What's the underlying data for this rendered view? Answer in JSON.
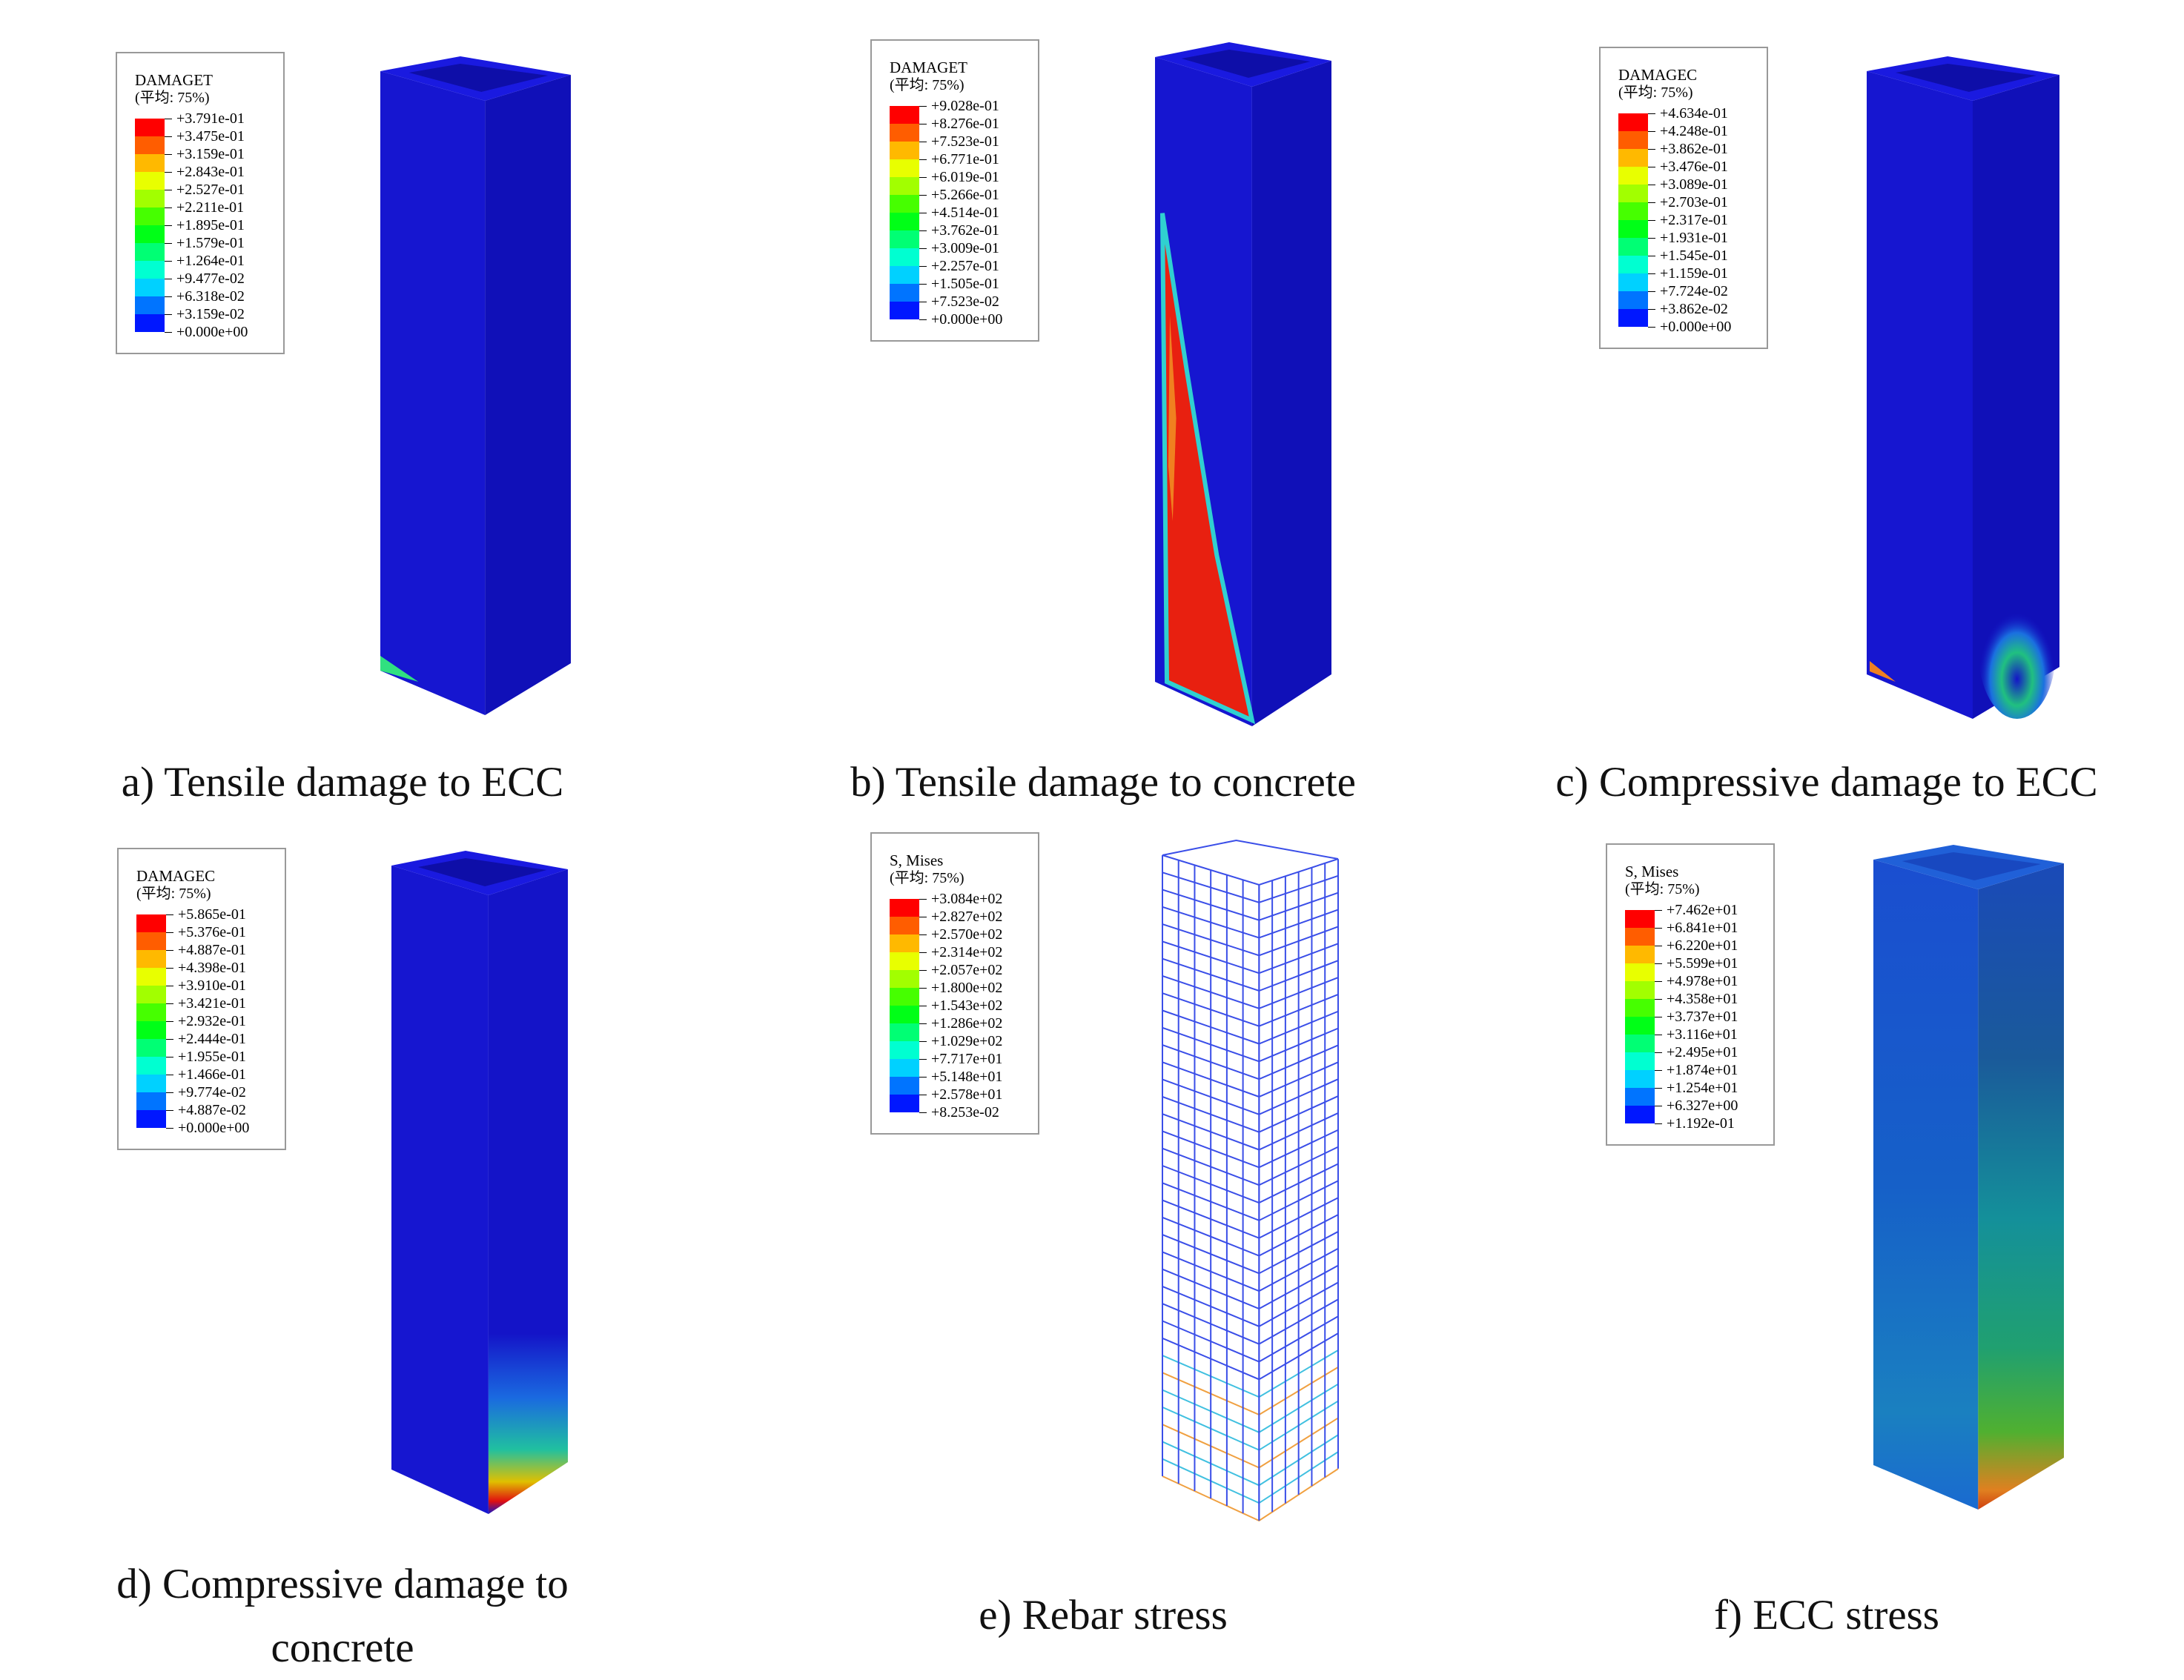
{
  "panels": [
    {
      "legend": {
        "title": "DAMAGET",
        "subtitle": "(平均: 75%)",
        "labels": [
          "+3.791e-01",
          "+3.475e-01",
          "+3.159e-01",
          "+2.843e-01",
          "+2.527e-01",
          "+2.211e-01",
          "+1.895e-01",
          "+1.579e-01",
          "+1.264e-01",
          "+9.477e-02",
          "+6.318e-02",
          "+3.159e-02",
          "+0.000e+00"
        ]
      },
      "caption": "a) Tensile damage to ECC"
    },
    {
      "legend": {
        "title": "DAMAGET",
        "subtitle": "(平均: 75%)",
        "labels": [
          "+9.028e-01",
          "+8.276e-01",
          "+7.523e-01",
          "+6.771e-01",
          "+6.019e-01",
          "+5.266e-01",
          "+4.514e-01",
          "+3.762e-01",
          "+3.009e-01",
          "+2.257e-01",
          "+1.505e-01",
          "+7.523e-02",
          "+0.000e+00"
        ]
      },
      "caption": "b) Tensile damage to concrete"
    },
    {
      "legend": {
        "title": "DAMAGEC",
        "subtitle": "(平均: 75%)",
        "labels": [
          "+4.634e-01",
          "+4.248e-01",
          "+3.862e-01",
          "+3.476e-01",
          "+3.089e-01",
          "+2.703e-01",
          "+2.317e-01",
          "+1.931e-01",
          "+1.545e-01",
          "+1.159e-01",
          "+7.724e-02",
          "+3.862e-02",
          "+0.000e+00"
        ]
      },
      "caption": "c) Compressive damage to ECC"
    },
    {
      "legend": {
        "title": "DAMAGEC",
        "subtitle": "(平均: 75%)",
        "labels": [
          "+5.865e-01",
          "+5.376e-01",
          "+4.887e-01",
          "+4.398e-01",
          "+3.910e-01",
          "+3.421e-01",
          "+2.932e-01",
          "+2.444e-01",
          "+1.955e-01",
          "+1.466e-01",
          "+9.774e-02",
          "+4.887e-02",
          "+0.000e+00"
        ]
      },
      "caption": "d) Compressive damage to concrete"
    },
    {
      "legend": {
        "title": "S, Mises",
        "subtitle": "(平均: 75%)",
        "labels": [
          "+3.084e+02",
          "+2.827e+02",
          "+2.570e+02",
          "+2.314e+02",
          "+2.057e+02",
          "+1.800e+02",
          "+1.543e+02",
          "+1.286e+02",
          "+1.029e+02",
          "+7.717e+01",
          "+5.148e+01",
          "+2.578e+01",
          "+8.253e-02"
        ]
      },
      "caption": "e) Rebar stress"
    },
    {
      "legend": {
        "title": "S, Mises",
        "subtitle": "(平均: 75%)",
        "labels": [
          "+7.462e+01",
          "+6.841e+01",
          "+6.220e+01",
          "+5.599e+01",
          "+4.978e+01",
          "+4.358e+01",
          "+3.737e+01",
          "+3.116e+01",
          "+2.495e+01",
          "+1.874e+01",
          "+1.254e+01",
          "+6.327e+00",
          "+1.192e-01"
        ]
      },
      "caption": "f) ECC stress"
    }
  ]
}
